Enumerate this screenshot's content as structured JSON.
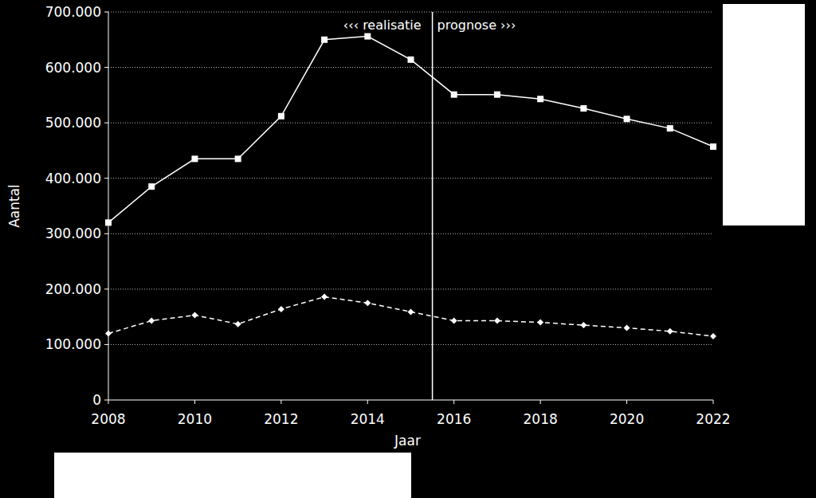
{
  "chart_data": {
    "type": "line",
    "x_label": "Jaar",
    "y_label": "Aantal",
    "x": [
      2008,
      2009,
      2010,
      2011,
      2012,
      2013,
      2014,
      2015,
      2016,
      2017,
      2018,
      2019,
      2020,
      2021,
      2022
    ],
    "series": [
      {
        "color": "#ffffff",
        "marker": "square",
        "line_style": "solid",
        "values": [
          320000,
          385000,
          435000,
          435000,
          512000,
          650000,
          656000,
          614000,
          551000,
          551000,
          543000,
          526000,
          507000,
          490000,
          457000
        ]
      },
      {
        "color": "#ffffff",
        "marker": "diamond",
        "line_style": "dashed",
        "values": [
          120000,
          143000,
          153000,
          137000,
          164000,
          186000,
          175000,
          159000,
          143000,
          143000,
          140000,
          135000,
          130000,
          124000,
          115000
        ]
      }
    ],
    "xlim": [
      2008,
      2022
    ],
    "xticks": [
      2008,
      2010,
      2012,
      2014,
      2016,
      2018,
      2020,
      2022
    ],
    "ylim": [
      0,
      700000
    ],
    "yticks": [
      0,
      {
        "value": 100000,
        "label": "100.000"
      },
      {
        "value": 200000,
        "label": "200.000"
      },
      {
        "value": 300000,
        "label": "300.000"
      },
      {
        "value": 400000,
        "label": "400.000"
      },
      {
        "value": 500000,
        "label": "500.000"
      },
      {
        "value": 600000,
        "label": "600.000"
      },
      {
        "value": 700000,
        "label": "700.000"
      }
    ],
    "grid": true,
    "divider": {
      "x": 2015.5,
      "left_label": "‹‹‹ realisatie",
      "right_label": "prognose ›››"
    }
  }
}
